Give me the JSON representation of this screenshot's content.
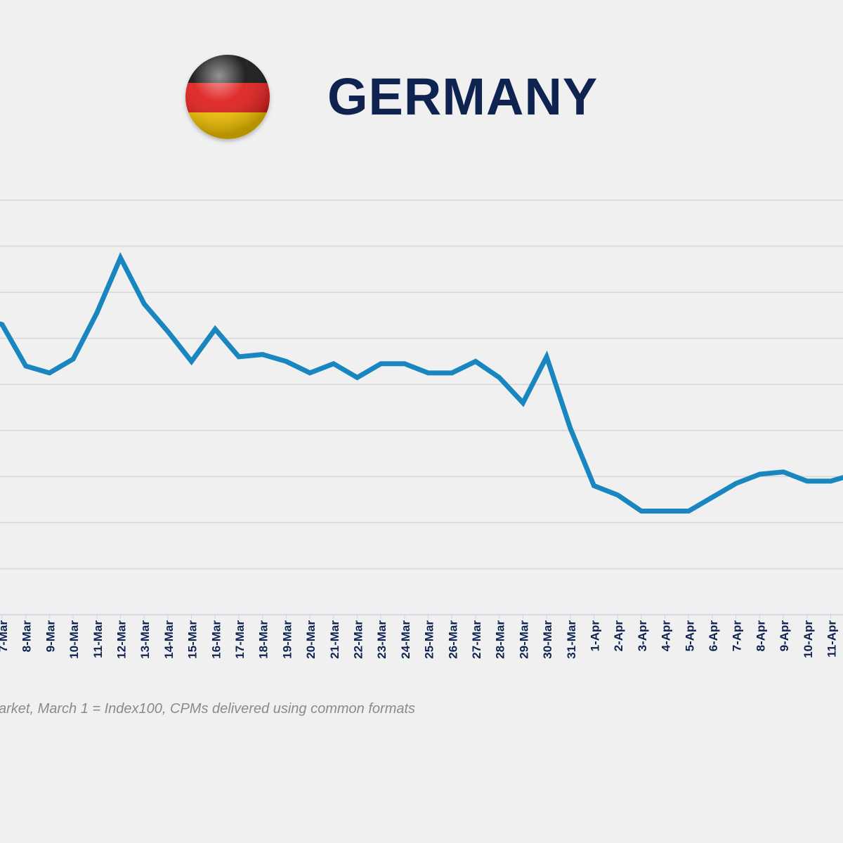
{
  "header": {
    "title": "GERMANY",
    "flag_icon": "germany-flag-icon",
    "flag_colors": [
      "#111111",
      "#dd1c1a",
      "#f2c200"
    ]
  },
  "footnote": "arket, March 1 = Index100, CPMs delivered using common formats",
  "colors": {
    "line": "#1a86c0",
    "grid": "#d6d6da",
    "axis": "#c9d6e6",
    "tick_text": "#0f2350",
    "title": "#0f2350"
  },
  "chart_data": {
    "type": "line",
    "title": "GERMANY",
    "xlabel": "",
    "ylabel": "",
    "grid": true,
    "ylim": [
      0,
      9
    ],
    "categories": [
      "7-Mar",
      "8-Mar",
      "9-Mar",
      "10-Mar",
      "11-Mar",
      "12-Mar",
      "13-Mar",
      "14-Mar",
      "15-Mar",
      "16-Mar",
      "17-Mar",
      "18-Mar",
      "19-Mar",
      "20-Mar",
      "21-Mar",
      "22-Mar",
      "23-Mar",
      "24-Mar",
      "25-Mar",
      "26-Mar",
      "27-Mar",
      "28-Mar",
      "29-Mar",
      "30-Mar",
      "31-Mar",
      "1-Apr",
      "2-Apr",
      "3-Apr",
      "4-Apr",
      "5-Apr",
      "6-Apr",
      "7-Apr",
      "8-Apr",
      "9-Apr",
      "10-Apr",
      "11-Apr"
    ],
    "series": [
      {
        "values": [
          6.3,
          5.4,
          5.25,
          5.55,
          6.55,
          7.75,
          6.75,
          6.15,
          5.5,
          6.2,
          5.6,
          5.65,
          5.5,
          5.25,
          5.45,
          5.15,
          5.45,
          5.45,
          5.25,
          5.25,
          5.5,
          5.15,
          4.6,
          5.6,
          4.05,
          2.8,
          2.6,
          2.25,
          2.25,
          2.25,
          2.55,
          2.85,
          3.05,
          3.1,
          2.9,
          2.9
        ]
      }
    ],
    "x_pre_start": 6.45,
    "x_post_end": 3.05
  }
}
